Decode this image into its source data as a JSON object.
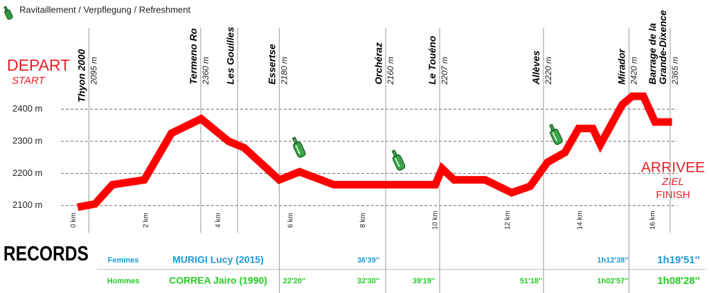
{
  "legend": {
    "text": "Ravitaillement / Verpflegung / Refreshment"
  },
  "start": {
    "title": "DEPART",
    "subtitle": "START"
  },
  "finish": {
    "title": "ARRIVEE",
    "subtitle": "ZIEL",
    "subtitle2": "FINISH"
  },
  "chart_data": {
    "type": "line",
    "x": [
      0,
      0.48,
      0.96,
      1.84,
      2.59,
      3.41,
      4.17,
      4.6,
      5.57,
      6.13,
      7.08,
      9.88,
      10.07,
      10.4,
      11.26,
      11.99,
      12.5,
      12.98,
      13.46,
      13.84,
      14.23,
      14.44,
      15.05,
      15.32,
      15.63,
      15.95,
      16.42
    ],
    "series": [
      {
        "name": "Elevation",
        "color": "#ff0000",
        "values": [
          2095,
          2105,
          2165,
          2180,
          2325,
          2370,
          2300,
          2280,
          2180,
          2205,
          2165,
          2165,
          2215,
          2180,
          2180,
          2140,
          2160,
          2235,
          2265,
          2340,
          2340,
          2290,
          2415,
          2440,
          2440,
          2360,
          2360
        ]
      }
    ],
    "xlim": [
      -0.5,
      16.6
    ],
    "ylim": [
      2050,
      2550
    ],
    "xticks": [
      {
        "value": 0,
        "label": "0 km"
      },
      {
        "value": 2,
        "label": "2 km"
      },
      {
        "value": 4,
        "label": "4 km"
      },
      {
        "value": 6,
        "label": "6 km"
      },
      {
        "value": 8,
        "label": "8 km"
      },
      {
        "value": 10,
        "label": "10 km"
      },
      {
        "value": 12,
        "label": "12 km"
      },
      {
        "value": 14,
        "label": "14 km"
      },
      {
        "value": 16,
        "label": "16 km"
      }
    ],
    "yticks": [
      {
        "value": 2100,
        "label": "2100 m"
      },
      {
        "value": 2200,
        "label": "2200 m"
      },
      {
        "value": 2300,
        "label": "2300 m"
      },
      {
        "value": 2400,
        "label": "2400 m"
      }
    ],
    "grid": true,
    "waypoints": [
      {
        "name": "Thyon 2000",
        "elevation": "2095 m",
        "km": 0.31
      },
      {
        "name": "Termeno Ro",
        "elevation": "2360 m",
        "km": 3.4
      },
      {
        "name": "Les Gouilles",
        "km": 4.42
      },
      {
        "name": "Essertse",
        "elevation": "2180 m",
        "km": 5.57
      },
      {
        "name": "Orchéraz",
        "elevation": "2160 m",
        "km": 8.51
      },
      {
        "name": "Le Touéno",
        "elevation": "2207 m",
        "km": 10.0
      },
      {
        "name": "Allèves",
        "elevation": "2220 m",
        "km": 12.87
      },
      {
        "name": "Mirador",
        "elevation": "2420 m",
        "km": 15.23
      },
      {
        "name": [
          "Barrage de la",
          "Grande-Dixence"
        ],
        "elevation": "2365 m",
        "km": 16.37
      }
    ],
    "refreshments": [
      {
        "km": 6.1,
        "elevation": 2280
      },
      {
        "km": 8.85,
        "elevation": 2240
      },
      {
        "km": 13.2,
        "elevation": 2320
      }
    ]
  },
  "records": {
    "title": "RECORDS",
    "rows": [
      {
        "category": "Femmes",
        "holder": "MURIGI Lucy (2015)",
        "splits": [
          null,
          "36'39''",
          null,
          null,
          "1h12'38''"
        ],
        "total": "1h19'51''",
        "color": "#1a9ad6"
      },
      {
        "category": "Hommes",
        "holder": "CORREA Jairo (1990)",
        "splits": [
          "22'20''",
          "32'30''",
          "39'19''",
          "51'18''",
          "1h02'57''"
        ],
        "total": "1h08'28''",
        "color": "#22cc22"
      }
    ]
  }
}
